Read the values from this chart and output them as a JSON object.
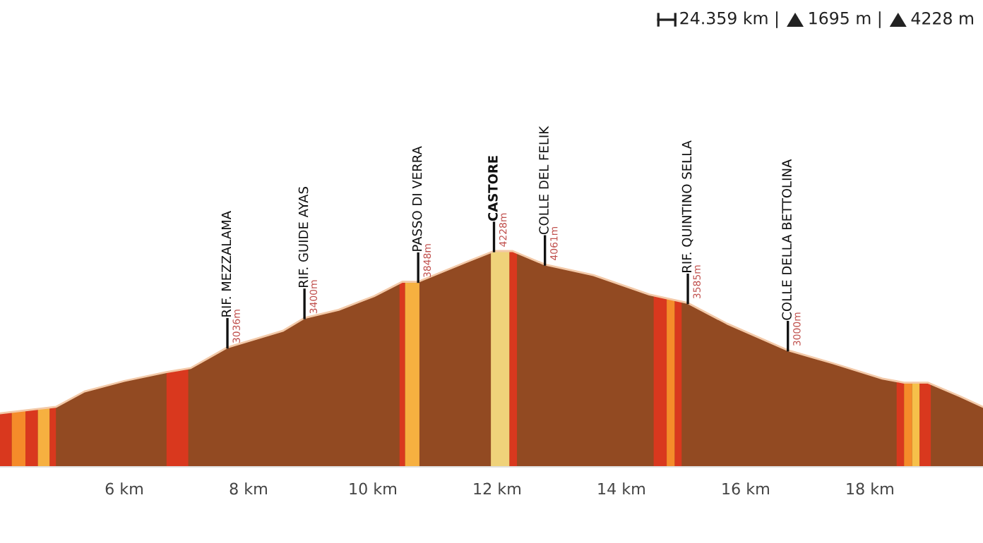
{
  "chart_data": {
    "type": "area",
    "x": [
      4.0,
      4.9,
      5.36,
      6.0,
      6.68,
      7.07,
      7.66,
      8.55,
      8.9,
      9.45,
      10.02,
      10.48,
      10.73,
      11.5,
      11.95,
      12.25,
      12.77,
      13.55,
      14.45,
      15.07,
      15.7,
      16.68,
      17.4,
      18.2,
      18.55,
      18.93,
      19.45,
      19.82
    ],
    "series": [
      {
        "color": "#924a22",
        "values": [
          2220,
          2300,
          2490,
          2620,
          2730,
          2780,
          3036,
          3240,
          3400,
          3500,
          3670,
          3850,
          3848,
          4090,
          4228,
          4228,
          4061,
          3930,
          3690,
          3585,
          3330,
          3000,
          2840,
          2650,
          2600,
          2600,
          2430,
          2300
        ],
        "value_labels": [
          null,
          null,
          null,
          null,
          null,
          null,
          "3036m",
          null,
          "3400m",
          null,
          null,
          null,
          "3848m",
          null,
          "4228m",
          null,
          "4061m",
          null,
          null,
          "3585m",
          null,
          "3000m",
          null,
          null,
          null,
          null,
          null,
          null
        ]
      }
    ],
    "xlim": [
      4.0,
      19.82
    ],
    "xticks": [
      {
        "value": 6,
        "label": "6 km"
      },
      {
        "value": 8,
        "label": "8 km"
      },
      {
        "value": 10,
        "label": "10 km"
      },
      {
        "value": 12,
        "label": "12 km"
      },
      {
        "value": 14,
        "label": "14 km"
      },
      {
        "value": 16,
        "label": "16 km"
      },
      {
        "value": 18,
        "label": "18 km"
      }
    ],
    "bands": [
      {
        "axis": "x",
        "from": 4.0,
        "to": 4.19,
        "color": "#d9381e"
      },
      {
        "axis": "x",
        "from": 4.19,
        "to": 4.41,
        "color": "#f58b2a"
      },
      {
        "axis": "x",
        "from": 4.41,
        "to": 4.61,
        "color": "#d9381e"
      },
      {
        "axis": "x",
        "from": 4.61,
        "to": 4.8,
        "color": "#f6b040"
      },
      {
        "axis": "x",
        "from": 4.8,
        "to": 4.9,
        "color": "#d9381e"
      },
      {
        "axis": "x",
        "from": 6.68,
        "to": 7.03,
        "color": "#d9381e"
      },
      {
        "axis": "x",
        "from": 10.43,
        "to": 10.52,
        "color": "#d9381e"
      },
      {
        "axis": "x",
        "from": 10.52,
        "to": 10.75,
        "color": "#f6b040"
      },
      {
        "axis": "x",
        "from": 11.9,
        "to": 12.2,
        "color": "#efd27a"
      },
      {
        "axis": "x",
        "from": 12.2,
        "to": 12.32,
        "color": "#d9381e"
      },
      {
        "axis": "x",
        "from": 14.52,
        "to": 14.73,
        "color": "#d9381e"
      },
      {
        "axis": "x",
        "from": 14.73,
        "to": 14.86,
        "color": "#f58b2a"
      },
      {
        "axis": "x",
        "from": 14.86,
        "to": 14.97,
        "color": "#d9381e"
      },
      {
        "axis": "x",
        "from": 18.43,
        "to": 18.55,
        "color": "#d9381e"
      },
      {
        "axis": "x",
        "from": 18.55,
        "to": 18.68,
        "color": "#f58b2a"
      },
      {
        "axis": "x",
        "from": 18.68,
        "to": 18.8,
        "color": "#f6c04a"
      },
      {
        "axis": "x",
        "from": 18.8,
        "to": 18.98,
        "color": "#d9381e"
      }
    ],
    "annotations": [
      "24.359 km |",
      "1695 m |",
      "4228 m",
      {
        "text": "RIF. MEZZALAMA",
        "x": 7.66,
        "y": 3036
      },
      {
        "text": "RIF. GUIDE AYAS",
        "x": 8.9,
        "y": 3400
      },
      {
        "text": "PASSO DI VERRA",
        "x": 10.73,
        "y": 3848
      },
      {
        "text": "CASTORE",
        "x": 11.95,
        "y": 4228
      },
      {
        "text": "COLLE DEL FELIK",
        "x": 12.77,
        "y": 4061
      },
      {
        "text": "RIF. QUINTINO SELLA",
        "x": 15.07,
        "y": 3585
      },
      {
        "text": "COLLE DELLA BETTOLINA",
        "x": 16.68,
        "y": 3000
      }
    ]
  }
}
